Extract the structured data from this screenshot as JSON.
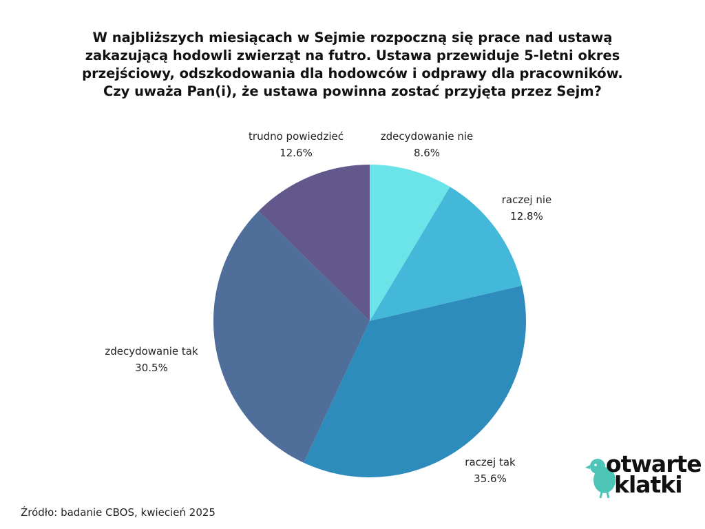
{
  "title_lines": [
    "W najbliższych miesiącach w Sejmie rozpoczną się prace nad ustawą",
    "zakazującą hodowli zwierząt na futro. Ustawa przewiduje 5-letni okres",
    "przejściowy, odszkodowania dla hodowców i odprawy dla pracowników.",
    "Czy uważa Pan(i), że ustawa powinna zostać przyjęta przez Sejm?"
  ],
  "chart_data": {
    "type": "pie",
    "start_angle_deg": 0,
    "direction": "clockwise",
    "slices": [
      {
        "label": "zdecydowanie nie",
        "value": 8.6,
        "display": "8.6%",
        "color": "#6ae4e8"
      },
      {
        "label": "raczej nie",
        "value": 12.8,
        "display": "12.8%",
        "color": "#43b8d8"
      },
      {
        "label": "raczej tak",
        "value": 35.6,
        "display": "35.6%",
        "color": "#2e8cbc"
      },
      {
        "label": "zdecydowanie tak",
        "value": 30.5,
        "display": "30.5%",
        "color": "#4f6e9a"
      },
      {
        "label": "trudno powiedzieć",
        "value": 12.6,
        "display": "12.6%",
        "color": "#62588c"
      }
    ]
  },
  "source": "Źródło: badanie CBOS, kwiecień 2025",
  "logo": {
    "line1": "otwarte",
    "line2": "klatki",
    "bird_color": "#4dc4b6"
  }
}
